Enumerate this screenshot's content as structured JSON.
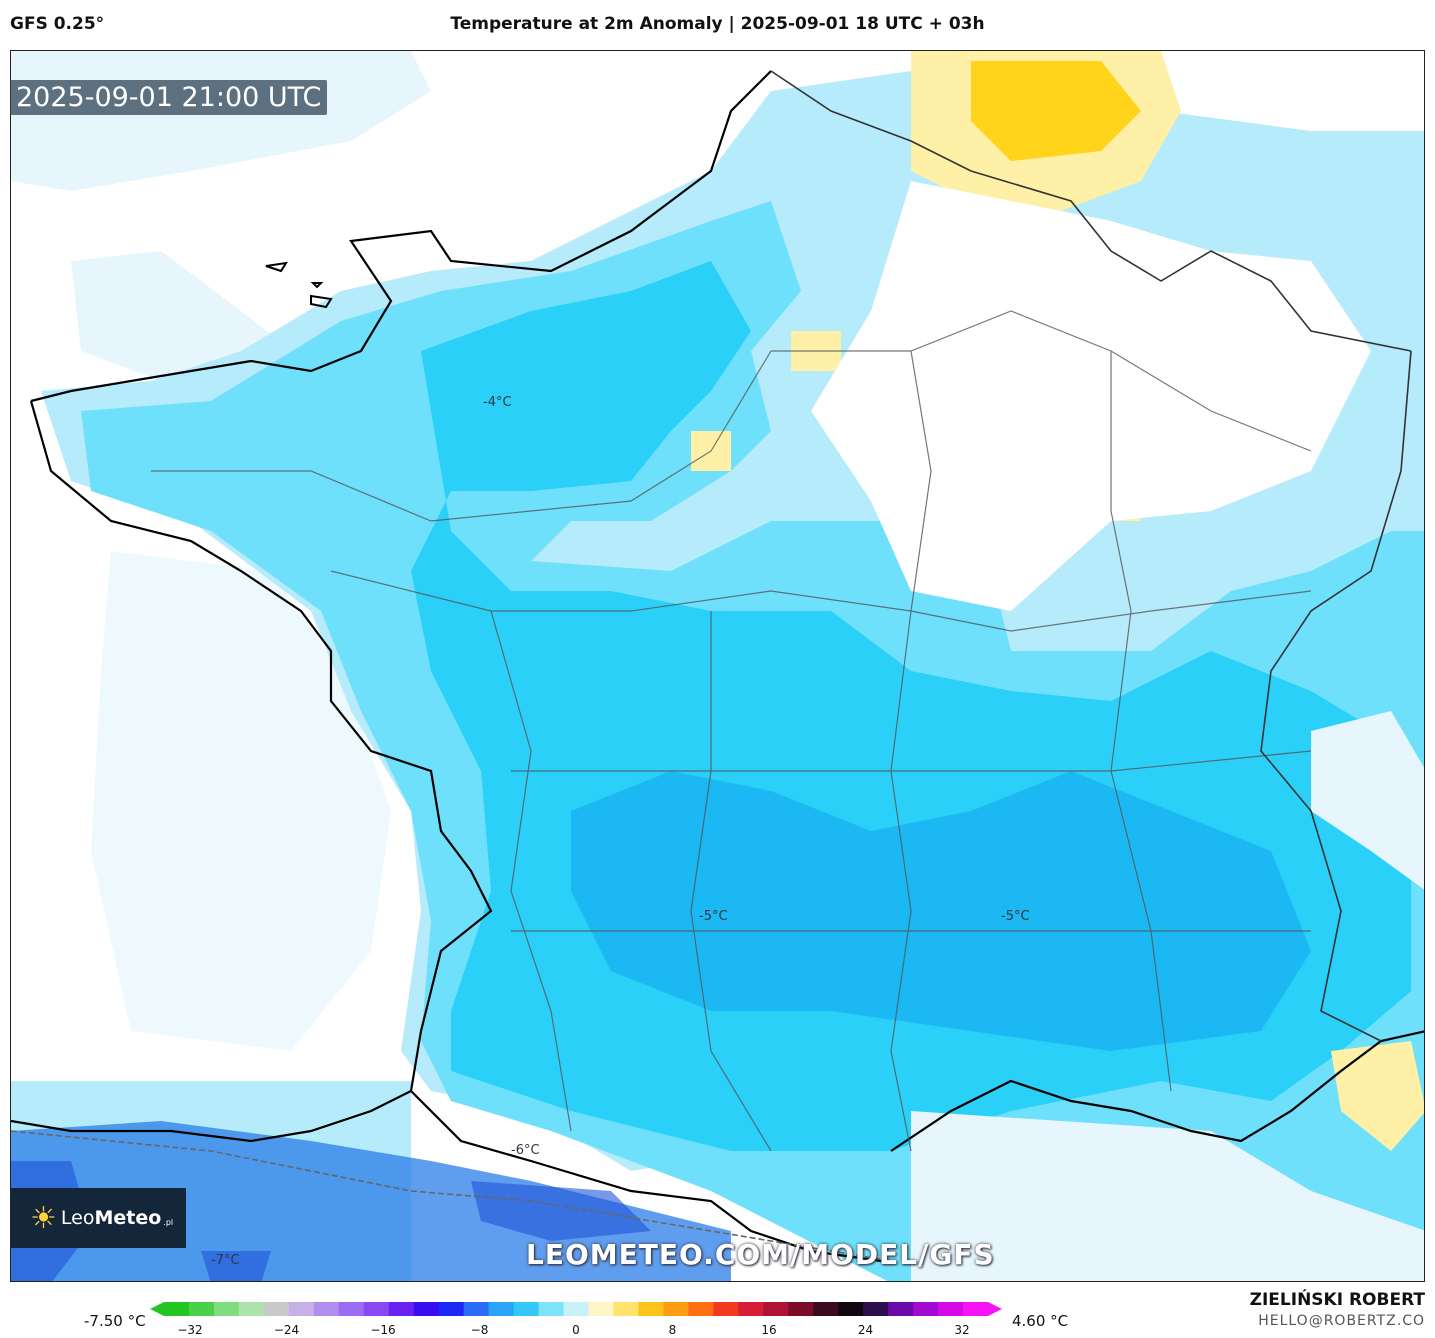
{
  "header": {
    "model": "GFS 0.25°",
    "title": "Temperature at 2m Anomaly | 2025-09-01 18 UTC + 03h"
  },
  "map": {
    "valid_time": "2025-09-01 21:00 UTC",
    "watermark": "LEOMETEO.COM/MODEL/GFS",
    "logo": {
      "prefix": "Leo",
      "bold": "Meteo",
      "suffix": ".pl"
    },
    "labels": [
      {
        "text": "-4°C"
      },
      {
        "text": "-5°C"
      },
      {
        "text": "-5°C"
      },
      {
        "text": "-6°C"
      },
      {
        "text": "-7°C"
      }
    ],
    "colors": {
      "neutral": "#ffffff",
      "pale_blue": "#e6f6fc",
      "light_blue": "#b5ebfb",
      "mid_blue": "#6ee0fb",
      "blue": "#2ad0f7",
      "deep_blue": "#1ab4f2",
      "dark_blue": "#2a7ce8",
      "yellow_pale": "#fff0a8",
      "yellow": "#ffd41a"
    }
  },
  "legend": {
    "min_label": "-7.50 °C",
    "max_label": "4.60 °C",
    "ticks": [
      "−32",
      "−24",
      "−16",
      "−8",
      "0",
      "8",
      "16",
      "24",
      "32"
    ],
    "colors": [
      "#22c522",
      "#4ad04a",
      "#7fdc7f",
      "#aee3ae",
      "#c9c9c9",
      "#c5b0e8",
      "#b08ef0",
      "#9c6cf2",
      "#8a48f2",
      "#6a22f0",
      "#3a0cf2",
      "#1c28f4",
      "#2a6cf6",
      "#2aa4f6",
      "#33c8f8",
      "#7ee2f8",
      "#c8f2fa",
      "#fff6c8",
      "#ffe36a",
      "#ffc41a",
      "#ff9e10",
      "#ff6e12",
      "#f43a1e",
      "#d81e36",
      "#b01236",
      "#7c0c28",
      "#3c0a1e",
      "#120610",
      "#2e0f4e",
      "#6a0aa8",
      "#a20ad0",
      "#d40ae6",
      "#f614f6"
    ]
  },
  "footer": {
    "author": "ZIELIŃSKI ROBERT",
    "email": "HELLO@ROBERTZ.CO"
  }
}
